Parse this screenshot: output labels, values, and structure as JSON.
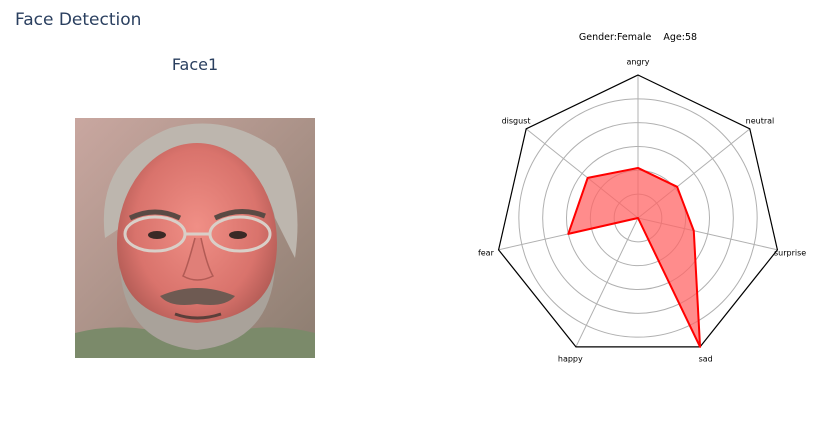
{
  "app": {
    "title": "Face Detection"
  },
  "face": {
    "title": "Face1",
    "gender_label": "Gender:",
    "gender": "Female",
    "age_label": "Age:",
    "age": "58"
  },
  "chart_data": {
    "type": "radar",
    "title": "Gender:Female    Age:58",
    "categories": [
      "angry",
      "neutral",
      "surprise",
      "sad",
      "happy",
      "fear",
      "disgust"
    ],
    "values": [
      0.35,
      0.35,
      0.4,
      1.0,
      0.0,
      0.5,
      0.45
    ],
    "rlim": [
      0,
      1
    ],
    "grid": true,
    "colors": {
      "line": "#ff0000",
      "fill": "#ff6666",
      "grid": "#b0b0b0",
      "frame": "#000000"
    }
  }
}
